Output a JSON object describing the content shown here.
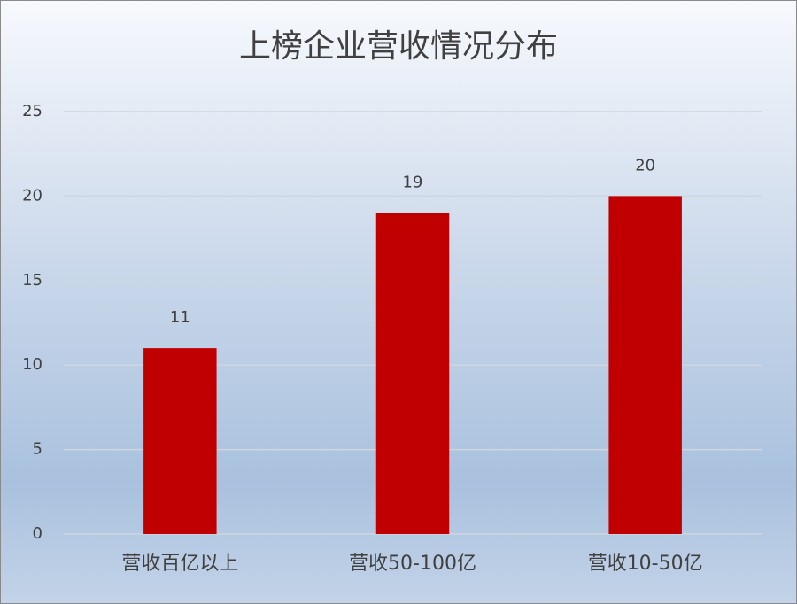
{
  "chart_data": {
    "type": "bar",
    "title": "上榜企业营收情况分布",
    "categories": [
      "营收百亿以上",
      "营收50-100亿",
      "营收10-50亿"
    ],
    "values": [
      11,
      19,
      20
    ],
    "color": "#c00000",
    "ylim": [
      0,
      25
    ],
    "yticks": [
      0,
      5,
      10,
      15,
      20,
      25
    ],
    "grid": true,
    "data_labels": true
  }
}
